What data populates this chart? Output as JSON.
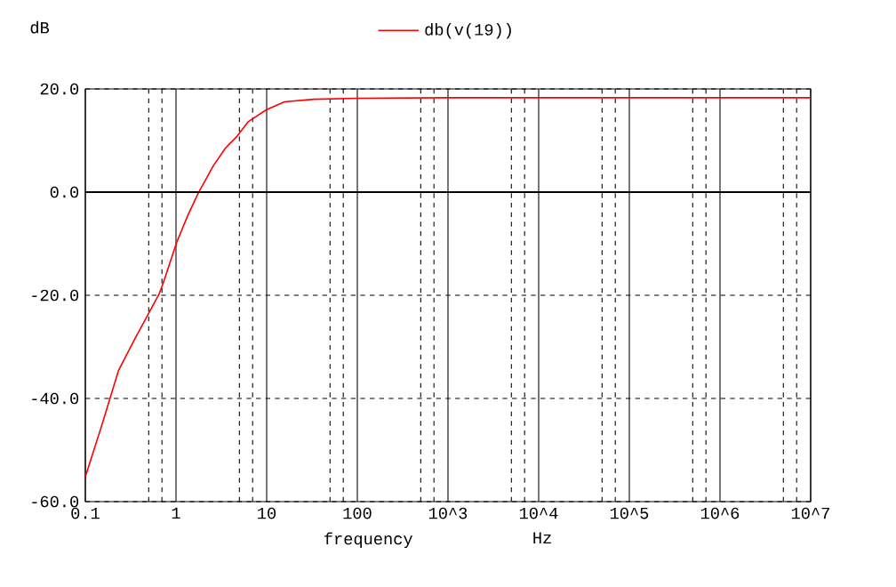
{
  "chart_data": {
    "type": "line",
    "xlabel": "frequency",
    "ylabel": "dB",
    "annotations": [
      "Hz"
    ],
    "log": "x",
    "grid": true,
    "legend": "top",
    "marker": "none",
    "line_style": "solid",
    "xlim": [
      0.1,
      10000000
    ],
    "ylim": [
      -60,
      20
    ],
    "xticks": [
      0.1,
      1,
      10,
      100,
      {
        "value": 1000,
        "label": "10^3"
      },
      {
        "value": 10000,
        "label": "10^4"
      },
      {
        "value": 100000,
        "label": "10^5"
      },
      {
        "value": 1000000,
        "label": "10^6"
      },
      {
        "value": 10000000,
        "label": "10^7"
      }
    ],
    "yticks": [
      {
        "value": -60,
        "label": "-60.0"
      },
      {
        "value": -40,
        "label": "-40.0"
      },
      {
        "value": -20,
        "label": "-20.0"
      },
      {
        "value": 0,
        "label": "0.0"
      },
      {
        "value": 20,
        "label": "20.0"
      }
    ],
    "ref_lines": [
      {
        "axis": "y",
        "value": 0,
        "color": "#000000",
        "line_style": "solid"
      }
    ],
    "x": [
      0.1,
      0.15,
      0.232,
      0.35,
      0.493,
      0.645,
      0.72,
      1.01,
      1.35,
      1.77,
      2.58,
      3.5,
      4.7,
      6.3,
      10,
      15.7,
      33,
      100,
      1000,
      10000000
    ],
    "series": [
      {
        "name": "db(v(19))",
        "color": "#ff0000",
        "values": [
          -55.2,
          -45.5,
          -34.6,
          -28.5,
          -23.7,
          -19.9,
          -17.7,
          -9.9,
          -4.5,
          -0.1,
          5.1,
          8.5,
          10.8,
          13.7,
          16.0,
          17.5,
          18.0,
          18.2,
          18.3,
          18.3
        ]
      }
    ]
  }
}
